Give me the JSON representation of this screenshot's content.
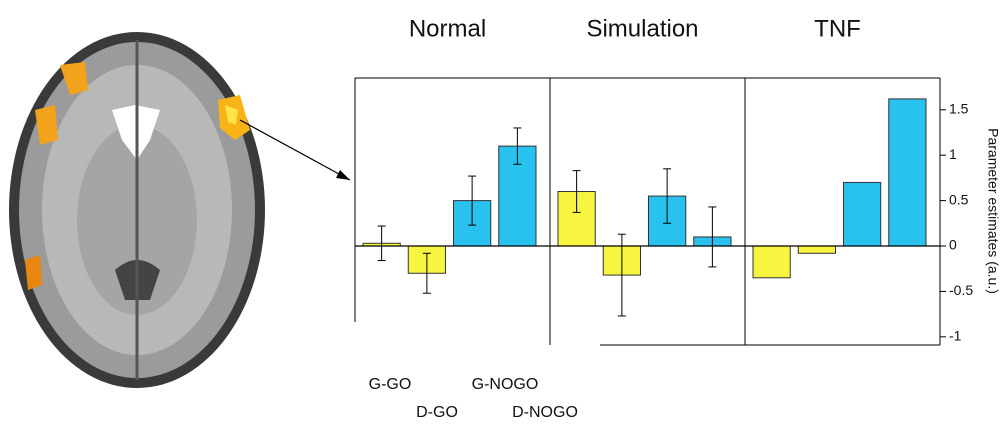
{
  "chart_data": {
    "type": "bar",
    "ylabel": "Parameter estimates (a.u.)",
    "categories": [
      "G-GO",
      "D-GO",
      "G-NOGO",
      "D-NOGO"
    ],
    "colors": [
      "#f7f53f",
      "#f7f53f",
      "#29c2ee",
      "#29c2ee"
    ],
    "ylim": [
      -1.09,
      1.85
    ],
    "yticks": [
      1.5,
      1,
      0.5,
      0,
      -0.5,
      -1
    ],
    "panels": [
      {
        "title": "Normal",
        "values": [
          0.03,
          -0.3,
          0.5,
          1.1
        ],
        "errors": [
          0.19,
          0.22,
          0.27,
          0.2
        ]
      },
      {
        "title": "Simulation",
        "values": [
          0.6,
          -0.32,
          0.55,
          0.1
        ],
        "errors": [
          0.23,
          0.45,
          0.3,
          0.33
        ]
      },
      {
        "title": "TNF",
        "values": [
          -0.35,
          -0.08,
          0.7,
          1.62
        ]
      }
    ]
  }
}
